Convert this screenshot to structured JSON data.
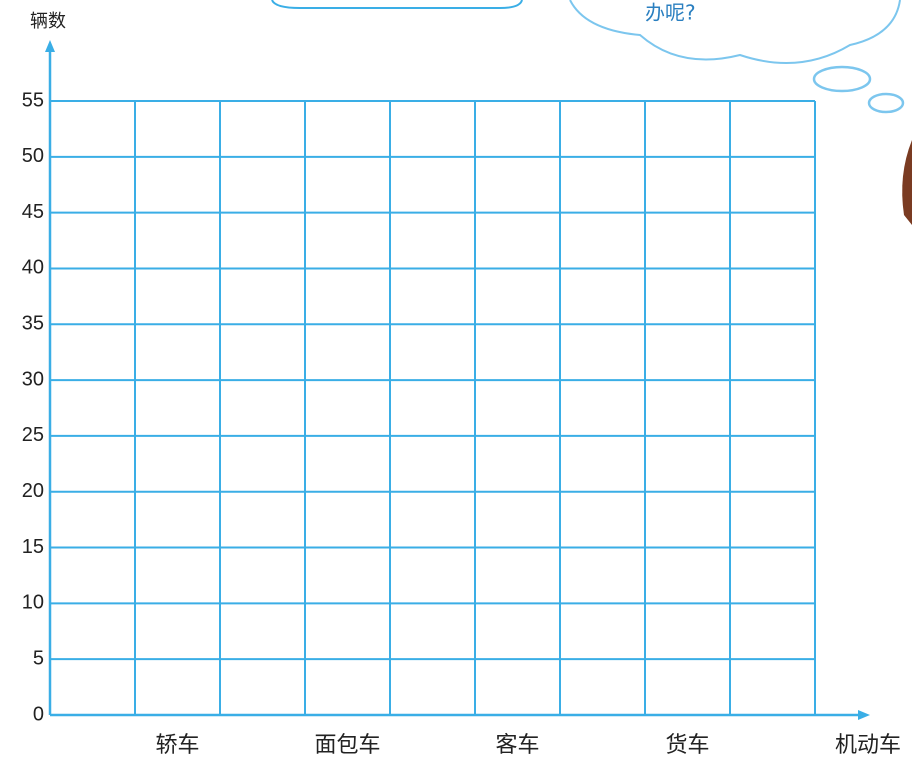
{
  "chart_data": {
    "type": "bar",
    "y_axis_label": "辆数",
    "x_axis_label": "机动车",
    "annotation": "办呢?",
    "categories": [
      "轿车",
      "面包车",
      "客车",
      "货车"
    ],
    "ylim": [
      0,
      55
    ],
    "yticks": [
      0,
      5,
      10,
      15,
      20,
      25,
      30,
      35,
      40,
      45,
      50,
      55
    ],
    "grid": true,
    "grid_color": "#3aaee6"
  }
}
